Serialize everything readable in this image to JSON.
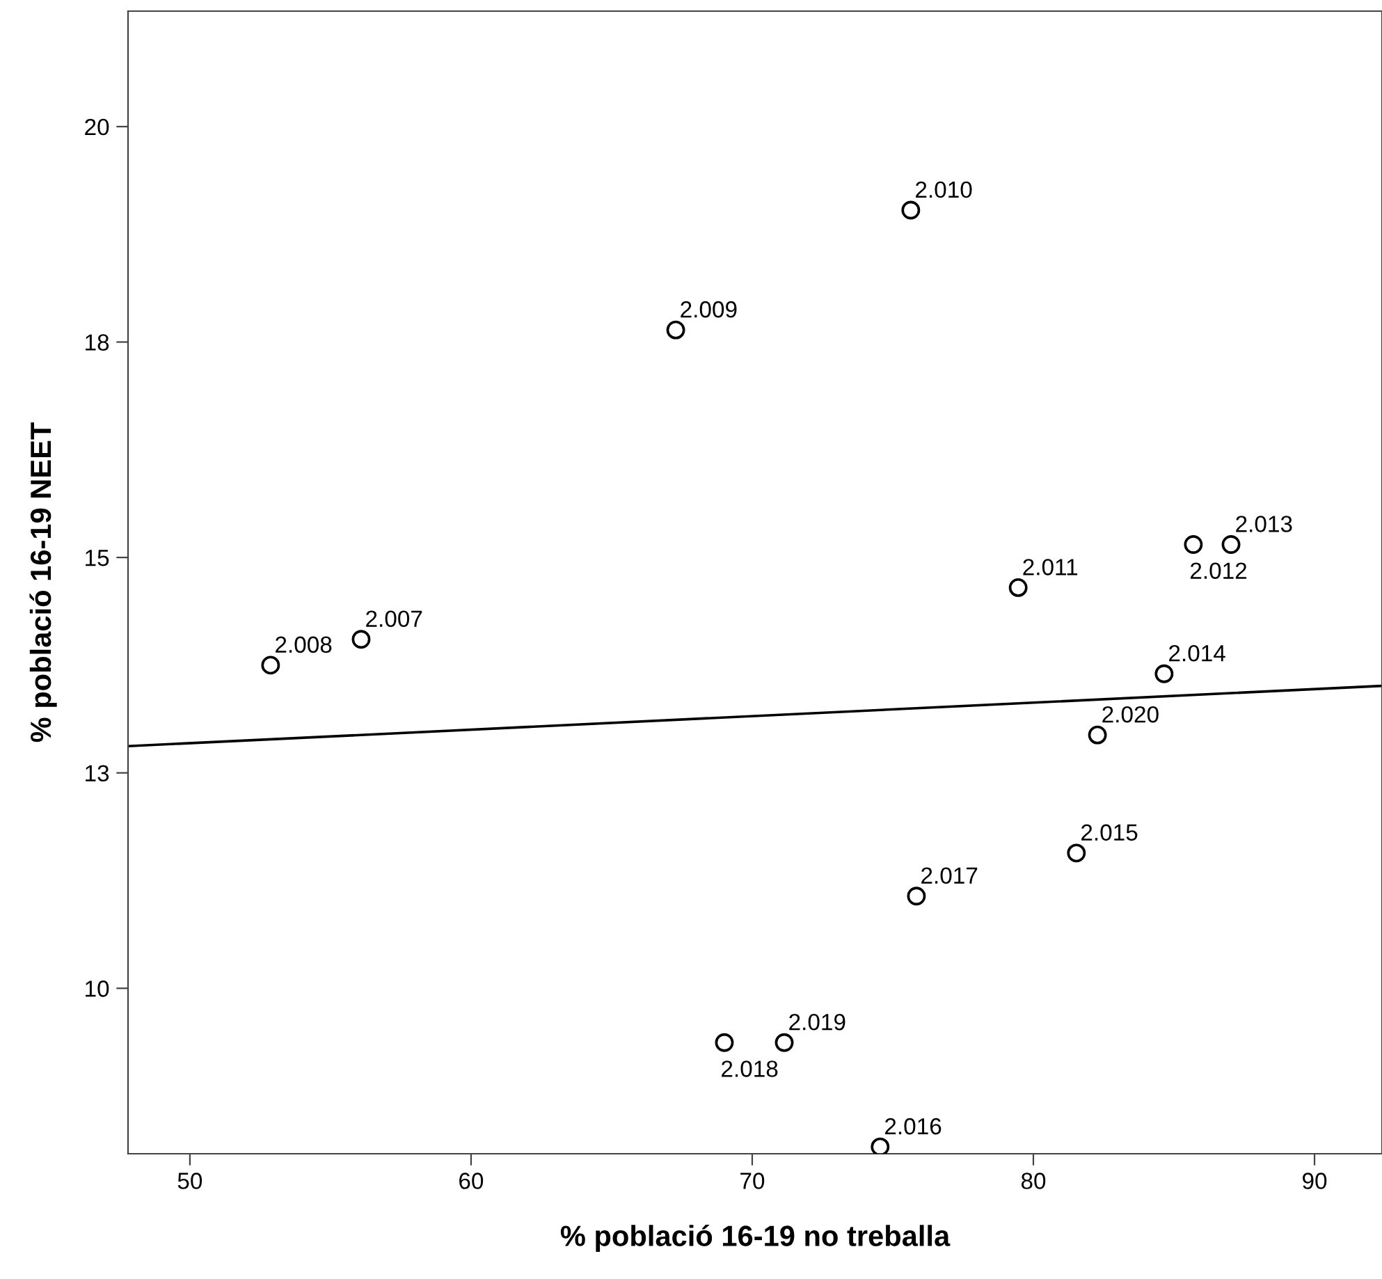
{
  "chart_data": {
    "type": "scatter",
    "xlabel": "% població 16-19 no treballa",
    "ylabel": "% població 16-19 NEET",
    "xlim": [
      47.8,
      92.4
    ],
    "ylim": [
      8.08,
      21.34
    ],
    "xticks": [
      50,
      60,
      70,
      80,
      90
    ],
    "yticks": [
      10,
      {
        "value": 12.5,
        "label": "13"
      },
      15,
      {
        "value": 17.5,
        "label": "18"
      },
      20
    ],
    "grid": false,
    "marker": "circle",
    "series": [
      {
        "color": "#000000",
        "x": [
          56.09,
          52.87,
          67.28,
          75.64,
          79.46,
          85.69,
          87.03,
          84.65,
          81.53,
          74.55,
          75.84,
          69.01,
          71.14,
          82.28
        ],
        "values": [
          14.05,
          13.75,
          17.64,
          19.03,
          14.65,
          15.15,
          15.15,
          13.65,
          11.57,
          8.16,
          11.07,
          9.37,
          9.37,
          12.94
        ]
      },
      {
        "type": "line",
        "color": "#000000",
        "x": [
          47.8,
          92.4
        ],
        "values": [
          12.81,
          13.51
        ],
        "line_style": "solid",
        "marker": "none"
      }
    ],
    "annotations": [
      {
        "text": "2.007",
        "x": 56.09,
        "y": 14.05
      },
      {
        "text": "2.008",
        "x": 52.87,
        "y": 13.75
      },
      {
        "text": "2.009",
        "x": 67.28,
        "y": 17.64
      },
      {
        "text": "2.010",
        "x": 75.64,
        "y": 19.03
      },
      {
        "text": "2.011",
        "x": 79.46,
        "y": 14.65
      },
      {
        "text": "2.012",
        "x": 85.69,
        "y": 15.15
      },
      {
        "text": "2.013",
        "x": 87.03,
        "y": 15.15
      },
      {
        "text": "2.014",
        "x": 84.65,
        "y": 13.65
      },
      {
        "text": "2.015",
        "x": 81.53,
        "y": 11.57
      },
      {
        "text": "2.016",
        "x": 74.55,
        "y": 8.16
      },
      {
        "text": "2.017",
        "x": 75.84,
        "y": 11.07
      },
      {
        "text": "2.018",
        "x": 69.01,
        "y": 9.37
      },
      {
        "text": "2.019",
        "x": 71.14,
        "y": 9.37
      },
      {
        "text": "2.020",
        "x": 82.28,
        "y": 12.94
      }
    ]
  }
}
